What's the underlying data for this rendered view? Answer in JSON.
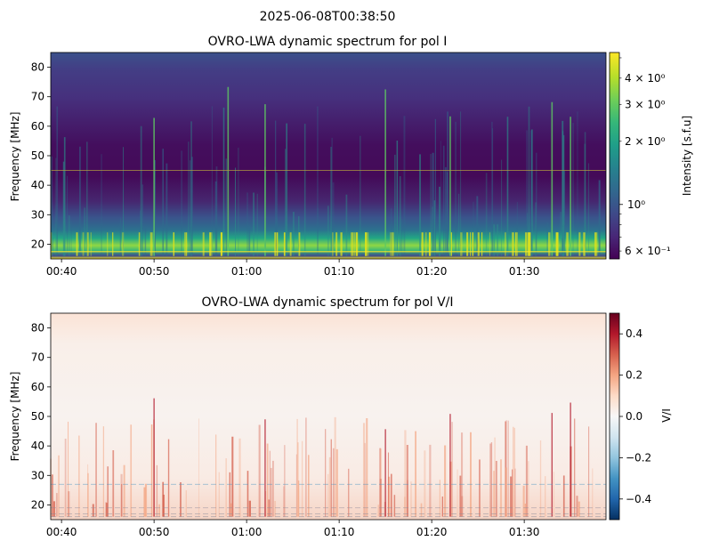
{
  "figure": {
    "suptitle": "2025-06-08T00:38:50"
  },
  "chart_data": [
    {
      "type": "heatmap",
      "title": "OVRO-LWA dynamic spectrum for pol I",
      "ylabel": "Frequency [MHz]",
      "xlabel": "",
      "x_range": [
        "00:38:50",
        "01:38:50"
      ],
      "xticks": [
        {
          "time": "00:40",
          "label": "00:40"
        },
        {
          "time": "00:50",
          "label": "00:50"
        },
        {
          "time": "01:00",
          "label": "01:00"
        },
        {
          "time": "01:10",
          "label": "01:10"
        },
        {
          "time": "01:20",
          "label": "01:20"
        },
        {
          "time": "01:30",
          "label": "01:30"
        }
      ],
      "ylim": [
        15,
        85
      ],
      "yticks": [
        20,
        30,
        40,
        50,
        60,
        70,
        80
      ],
      "colorbar": {
        "label": "Intensity [s.f.u]",
        "scale": "log",
        "range": [
          0.55,
          5.3
        ],
        "colormap": "viridis",
        "major_ticks": [
          {
            "value": 1,
            "label": "10⁰"
          }
        ],
        "minor_tick_labels": [
          {
            "value": 0.6,
            "label": "6 × 10⁻¹"
          },
          {
            "value": 2,
            "label": "2 × 10⁰"
          },
          {
            "value": 3,
            "label": "3 × 10⁰"
          },
          {
            "value": 4,
            "label": "4 × 10⁰"
          }
        ]
      },
      "features": {
        "horizontal_line_mhz": 45,
        "bright_bursts_times": [
          "00:50",
          "00:58",
          "01:02",
          "01:15",
          "01:22",
          "01:33",
          "01:35"
        ]
      }
    },
    {
      "type": "heatmap",
      "title": "OVRO-LWA dynamic spectrum for pol V/I",
      "ylabel": "Frequency [MHz]",
      "xlabel": "",
      "x_range": [
        "00:38:50",
        "01:38:50"
      ],
      "xticks": [
        {
          "time": "00:40",
          "label": "00:40"
        },
        {
          "time": "00:50",
          "label": "00:50"
        },
        {
          "time": "01:00",
          "label": "01:00"
        },
        {
          "time": "01:10",
          "label": "01:10"
        },
        {
          "time": "01:20",
          "label": "01:20"
        },
        {
          "time": "01:30",
          "label": "01:30"
        }
      ],
      "ylim": [
        15,
        85
      ],
      "yticks": [
        20,
        30,
        40,
        50,
        60,
        70,
        80
      ],
      "colorbar": {
        "label": "V/I",
        "scale": "linear",
        "range": [
          -0.5,
          0.5
        ],
        "colormap": "RdBu_r",
        "ticks": [
          {
            "value": 0.4,
            "label": "0.4"
          },
          {
            "value": 0.2,
            "label": "0.2"
          },
          {
            "value": 0.0,
            "label": "0.0"
          },
          {
            "value": -0.2,
            "label": "−0.2"
          },
          {
            "value": -0.4,
            "label": "−0.4"
          }
        ]
      }
    }
  ],
  "colors": {
    "viridis": [
      "#440154",
      "#482878",
      "#3e4a89",
      "#31688e",
      "#26828e",
      "#1f9e89",
      "#35b779",
      "#6ece58",
      "#b5de2b",
      "#fde725"
    ],
    "rdbu_r": [
      "#053061",
      "#2166ac",
      "#4393c3",
      "#92c5de",
      "#d1e5f0",
      "#f7f7f7",
      "#fddbc7",
      "#f4a582",
      "#d6604d",
      "#b2182b",
      "#67001f"
    ]
  }
}
